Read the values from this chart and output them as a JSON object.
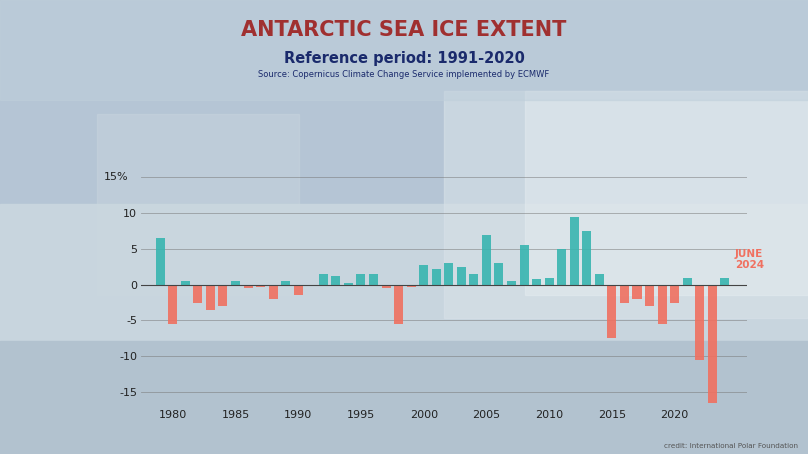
{
  "title": "ANTARCTIC SEA ICE EXTENT",
  "subtitle": "Reference period: 1991-2020",
  "source": "Source: Copernicus Climate Change Service implemented by ECMWF",
  "credit": "credit: International Polar Foundation",
  "title_color": "#a03030",
  "subtitle_color": "#1a2a6c",
  "source_color": "#1a2a6c",
  "years": [
    1979,
    1980,
    1981,
    1982,
    1983,
    1984,
    1985,
    1986,
    1987,
    1988,
    1989,
    1990,
    1991,
    1992,
    1993,
    1994,
    1995,
    1996,
    1997,
    1998,
    1999,
    2000,
    2001,
    2002,
    2003,
    2004,
    2005,
    2006,
    2007,
    2008,
    2009,
    2010,
    2011,
    2012,
    2013,
    2014,
    2015,
    2016,
    2017,
    2018,
    2019,
    2020,
    2021,
    2022,
    2023,
    2024
  ],
  "values": [
    6.5,
    -5.5,
    0.5,
    -2.5,
    -3.5,
    -3.0,
    0.5,
    -0.5,
    -0.3,
    -2.0,
    0.5,
    -1.5,
    -0.2,
    1.5,
    1.2,
    0.2,
    1.5,
    1.5,
    -0.5,
    -5.5,
    -0.3,
    2.8,
    2.2,
    3.0,
    2.5,
    1.5,
    7.0,
    3.0,
    0.5,
    5.5,
    0.8,
    1.0,
    5.0,
    9.5,
    7.5,
    1.5,
    -7.5,
    -2.5,
    -2.0,
    -3.0,
    -5.5,
    -2.5,
    1.0,
    -10.5,
    -16.5,
    1.0
  ],
  "positive_color": "#38b5b0",
  "negative_color": "#f07060",
  "annotation_text": "JUNE\n2024",
  "annotation_color": "#f07060",
  "annotation_year": 2024,
  "ylim": [
    -17,
    16
  ],
  "yticks": [
    -15,
    -10,
    -5,
    0,
    5,
    10
  ],
  "ytick_top": 15,
  "ytick_labels": [
    "-15",
    "-10",
    "-5",
    "0",
    "5",
    "10"
  ],
  "top_label": "15%",
  "grid_color": "#777777",
  "bg_top_color": "#b8cad8",
  "bg_bottom_color": "#c8d8e4",
  "photo_top": "#c0d0dc",
  "photo_mid": "#d0dde8",
  "photo_bottom": "#bac8d2"
}
